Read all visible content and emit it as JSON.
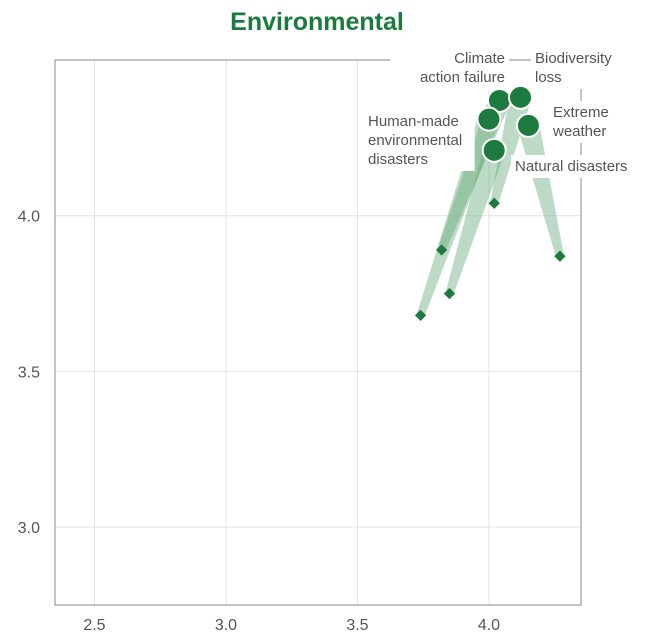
{
  "chart_data": {
    "type": "scatter",
    "title": "Environmental",
    "xlabel": "",
    "ylabel": "",
    "xlim": [
      2.35,
      4.35
    ],
    "ylim": [
      2.75,
      4.5
    ],
    "x_ticks": [
      "2.5",
      "3.0",
      "3.5",
      "4.0"
    ],
    "y_ticks": [
      "3.0",
      "3.5",
      "4.0"
    ],
    "grid": true,
    "colors": {
      "title": "#1b7a3e",
      "point": "#1e7b40",
      "trail": "#6aad7e",
      "grid": "#e3e3e3"
    },
    "series": [
      {
        "name": "Climate action failure",
        "label_lines": [
          "Climate",
          "action failure"
        ],
        "from": {
          "x": 3.82,
          "y": 3.89
        },
        "to": {
          "x": 4.04,
          "y": 4.37
        }
      },
      {
        "name": "Biodiversity loss",
        "label_lines": [
          "Biodiversity",
          "loss"
        ],
        "from": {
          "x": 4.02,
          "y": 4.04
        },
        "to": {
          "x": 4.12,
          "y": 4.38
        }
      },
      {
        "name": "Extreme weather",
        "label_lines": [
          "Extreme",
          "weather"
        ],
        "from": {
          "x": 4.27,
          "y": 3.87
        },
        "to": {
          "x": 4.15,
          "y": 4.29
        }
      },
      {
        "name": "Human-made environmental disasters",
        "label_lines": [
          "Human-made",
          "environmental",
          "disasters"
        ],
        "from": {
          "x": 3.74,
          "y": 3.68
        },
        "to": {
          "x": 4.0,
          "y": 4.31
        }
      },
      {
        "name": "Natural disasters",
        "label_lines": [
          "Natural disasters"
        ],
        "from": {
          "x": 3.85,
          "y": 3.75
        },
        "to": {
          "x": 4.02,
          "y": 4.21
        }
      }
    ]
  }
}
